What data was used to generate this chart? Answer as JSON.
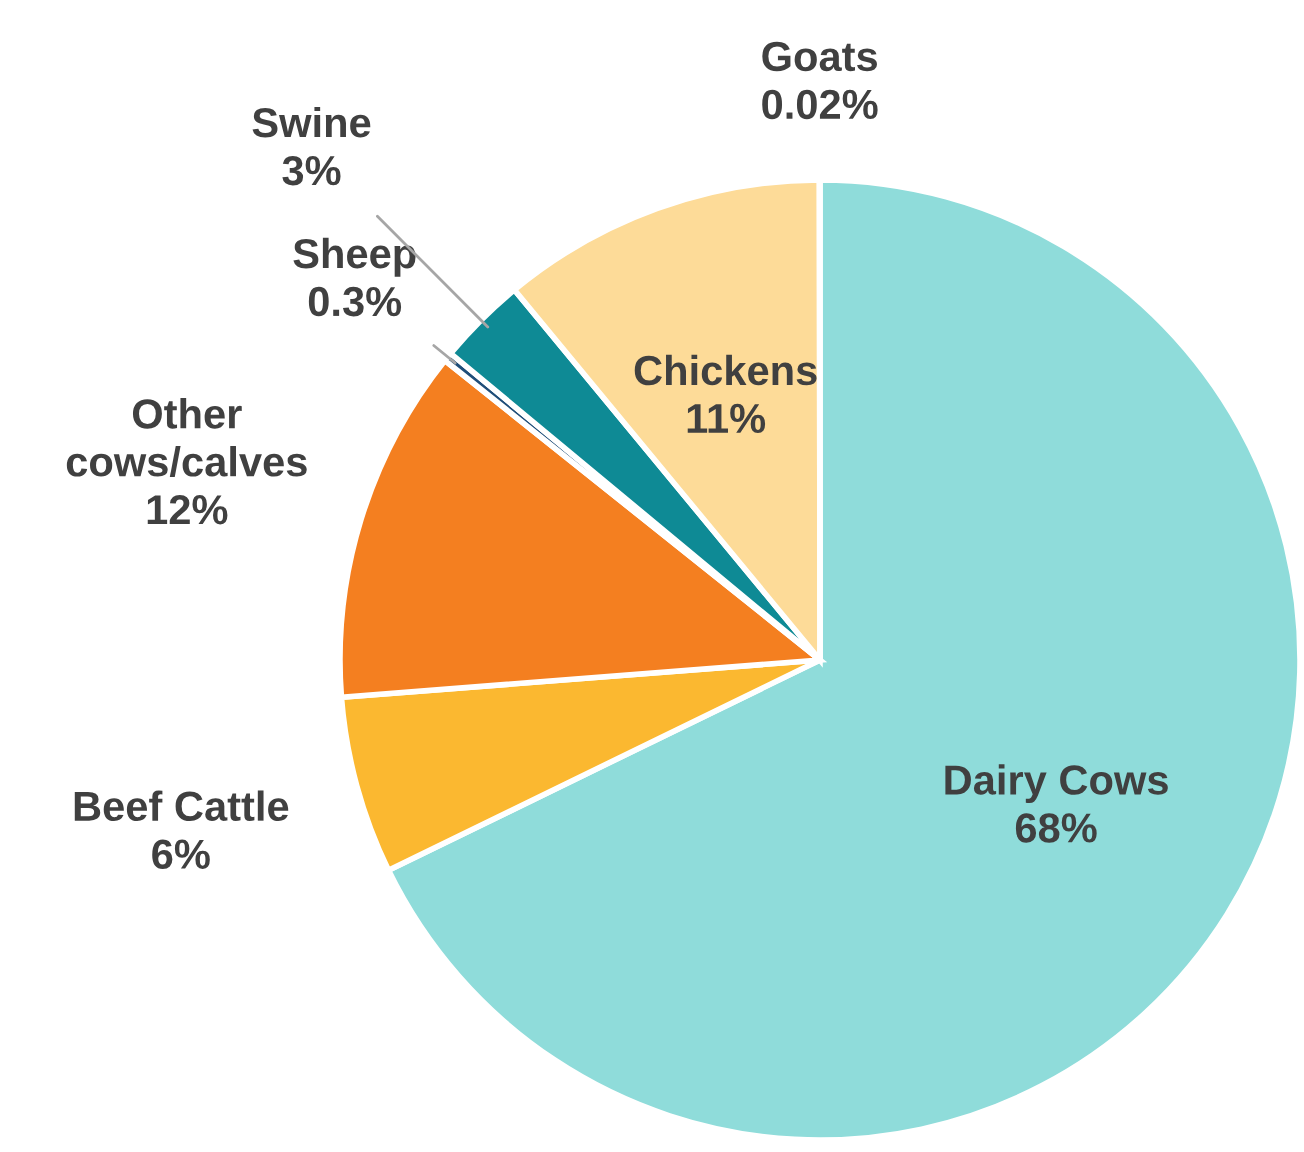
{
  "chart_data": {
    "type": "pie",
    "categories": [
      "Dairy Cows",
      "Beef Cattle",
      "Other cows/calves",
      "Sheep",
      "Swine",
      "Chickens",
      "Goats"
    ],
    "values": [
      68,
      6,
      12,
      0.3,
      3,
      11,
      0.02
    ],
    "value_labels": [
      "68%",
      "6%",
      "12%",
      "0.3%",
      "3%",
      "11%",
      "0.02%"
    ],
    "colors": [
      "#8fdcda",
      "#fbb830",
      "#f47f20",
      "#1f4e79",
      "#0e8a95",
      "#fddb98",
      "#a6a6a6"
    ]
  }
}
